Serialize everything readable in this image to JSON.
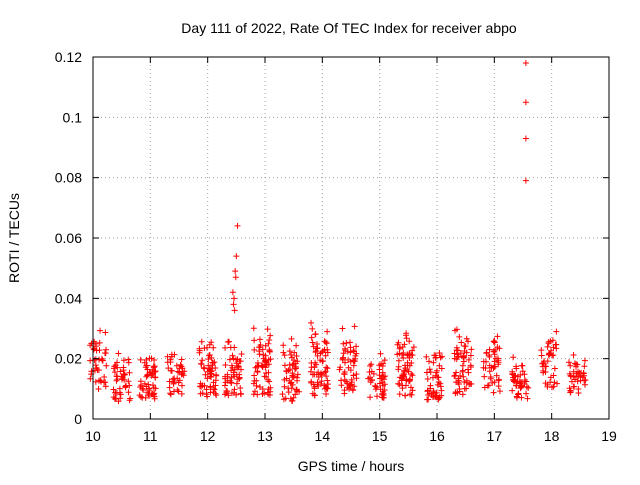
{
  "chart_data": {
    "type": "scatter",
    "title": "Day 111 of 2022, Rate Of TEC Index for receiver abpo",
    "xlabel": "GPS time / hours",
    "ylabel": "ROTI / TECUs",
    "xlim": [
      10,
      19
    ],
    "ylim": [
      0,
      0.12
    ],
    "xticks": [
      10,
      11,
      12,
      13,
      14,
      15,
      16,
      17,
      18,
      19
    ],
    "yticks": [
      0,
      0.02,
      0.04,
      0.06,
      0.08,
      0.1,
      0.12
    ],
    "ytick_labels": [
      "0",
      "0.02",
      "0.04",
      "0.06",
      "0.08",
      "0.1",
      "0.12"
    ],
    "grid": true,
    "marker": "+",
    "color": "#ff0000",
    "clusters": [
      {
        "x": 10.1,
        "ymin": 0.006,
        "ymax": 0.032,
        "n": 40
      },
      {
        "x": 10.5,
        "ymin": 0.003,
        "ymax": 0.022,
        "n": 45
      },
      {
        "x": 10.95,
        "ymin": 0.004,
        "ymax": 0.022,
        "n": 55
      },
      {
        "x": 11.45,
        "ymin": 0.005,
        "ymax": 0.024,
        "n": 40
      },
      {
        "x": 12.0,
        "ymin": 0.004,
        "ymax": 0.027,
        "n": 60
      },
      {
        "x": 12.45,
        "ymin": 0.004,
        "ymax": 0.027,
        "n": 55
      },
      {
        "x": 12.95,
        "ymin": 0.003,
        "ymax": 0.032,
        "n": 65
      },
      {
        "x": 13.45,
        "ymin": 0.002,
        "ymax": 0.028,
        "n": 55
      },
      {
        "x": 13.95,
        "ymin": 0.003,
        "ymax": 0.034,
        "n": 70
      },
      {
        "x": 14.45,
        "ymin": 0.004,
        "ymax": 0.032,
        "n": 55
      },
      {
        "x": 14.95,
        "ymin": 0.004,
        "ymax": 0.022,
        "n": 45
      },
      {
        "x": 15.45,
        "ymin": 0.003,
        "ymax": 0.03,
        "n": 65
      },
      {
        "x": 15.95,
        "ymin": 0.003,
        "ymax": 0.024,
        "n": 50
      },
      {
        "x": 16.45,
        "ymin": 0.003,
        "ymax": 0.036,
        "n": 60
      },
      {
        "x": 16.95,
        "ymin": 0.004,
        "ymax": 0.029,
        "n": 45
      },
      {
        "x": 17.45,
        "ymin": 0.004,
        "ymax": 0.022,
        "n": 45
      },
      {
        "x": 17.95,
        "ymin": 0.007,
        "ymax": 0.03,
        "n": 40
      },
      {
        "x": 18.45,
        "ymin": 0.006,
        "ymax": 0.023,
        "n": 40
      }
    ],
    "highlight_points": [
      {
        "x": 12.52,
        "y": 0.064
      },
      {
        "x": 12.5,
        "y": 0.054
      },
      {
        "x": 12.48,
        "y": 0.049
      },
      {
        "x": 12.49,
        "y": 0.047
      },
      {
        "x": 12.44,
        "y": 0.042
      },
      {
        "x": 12.46,
        "y": 0.04
      },
      {
        "x": 12.45,
        "y": 0.038
      },
      {
        "x": 12.47,
        "y": 0.036
      },
      {
        "x": 17.55,
        "y": 0.118
      },
      {
        "x": 17.55,
        "y": 0.105
      },
      {
        "x": 17.55,
        "y": 0.093
      },
      {
        "x": 17.55,
        "y": 0.079
      }
    ]
  }
}
